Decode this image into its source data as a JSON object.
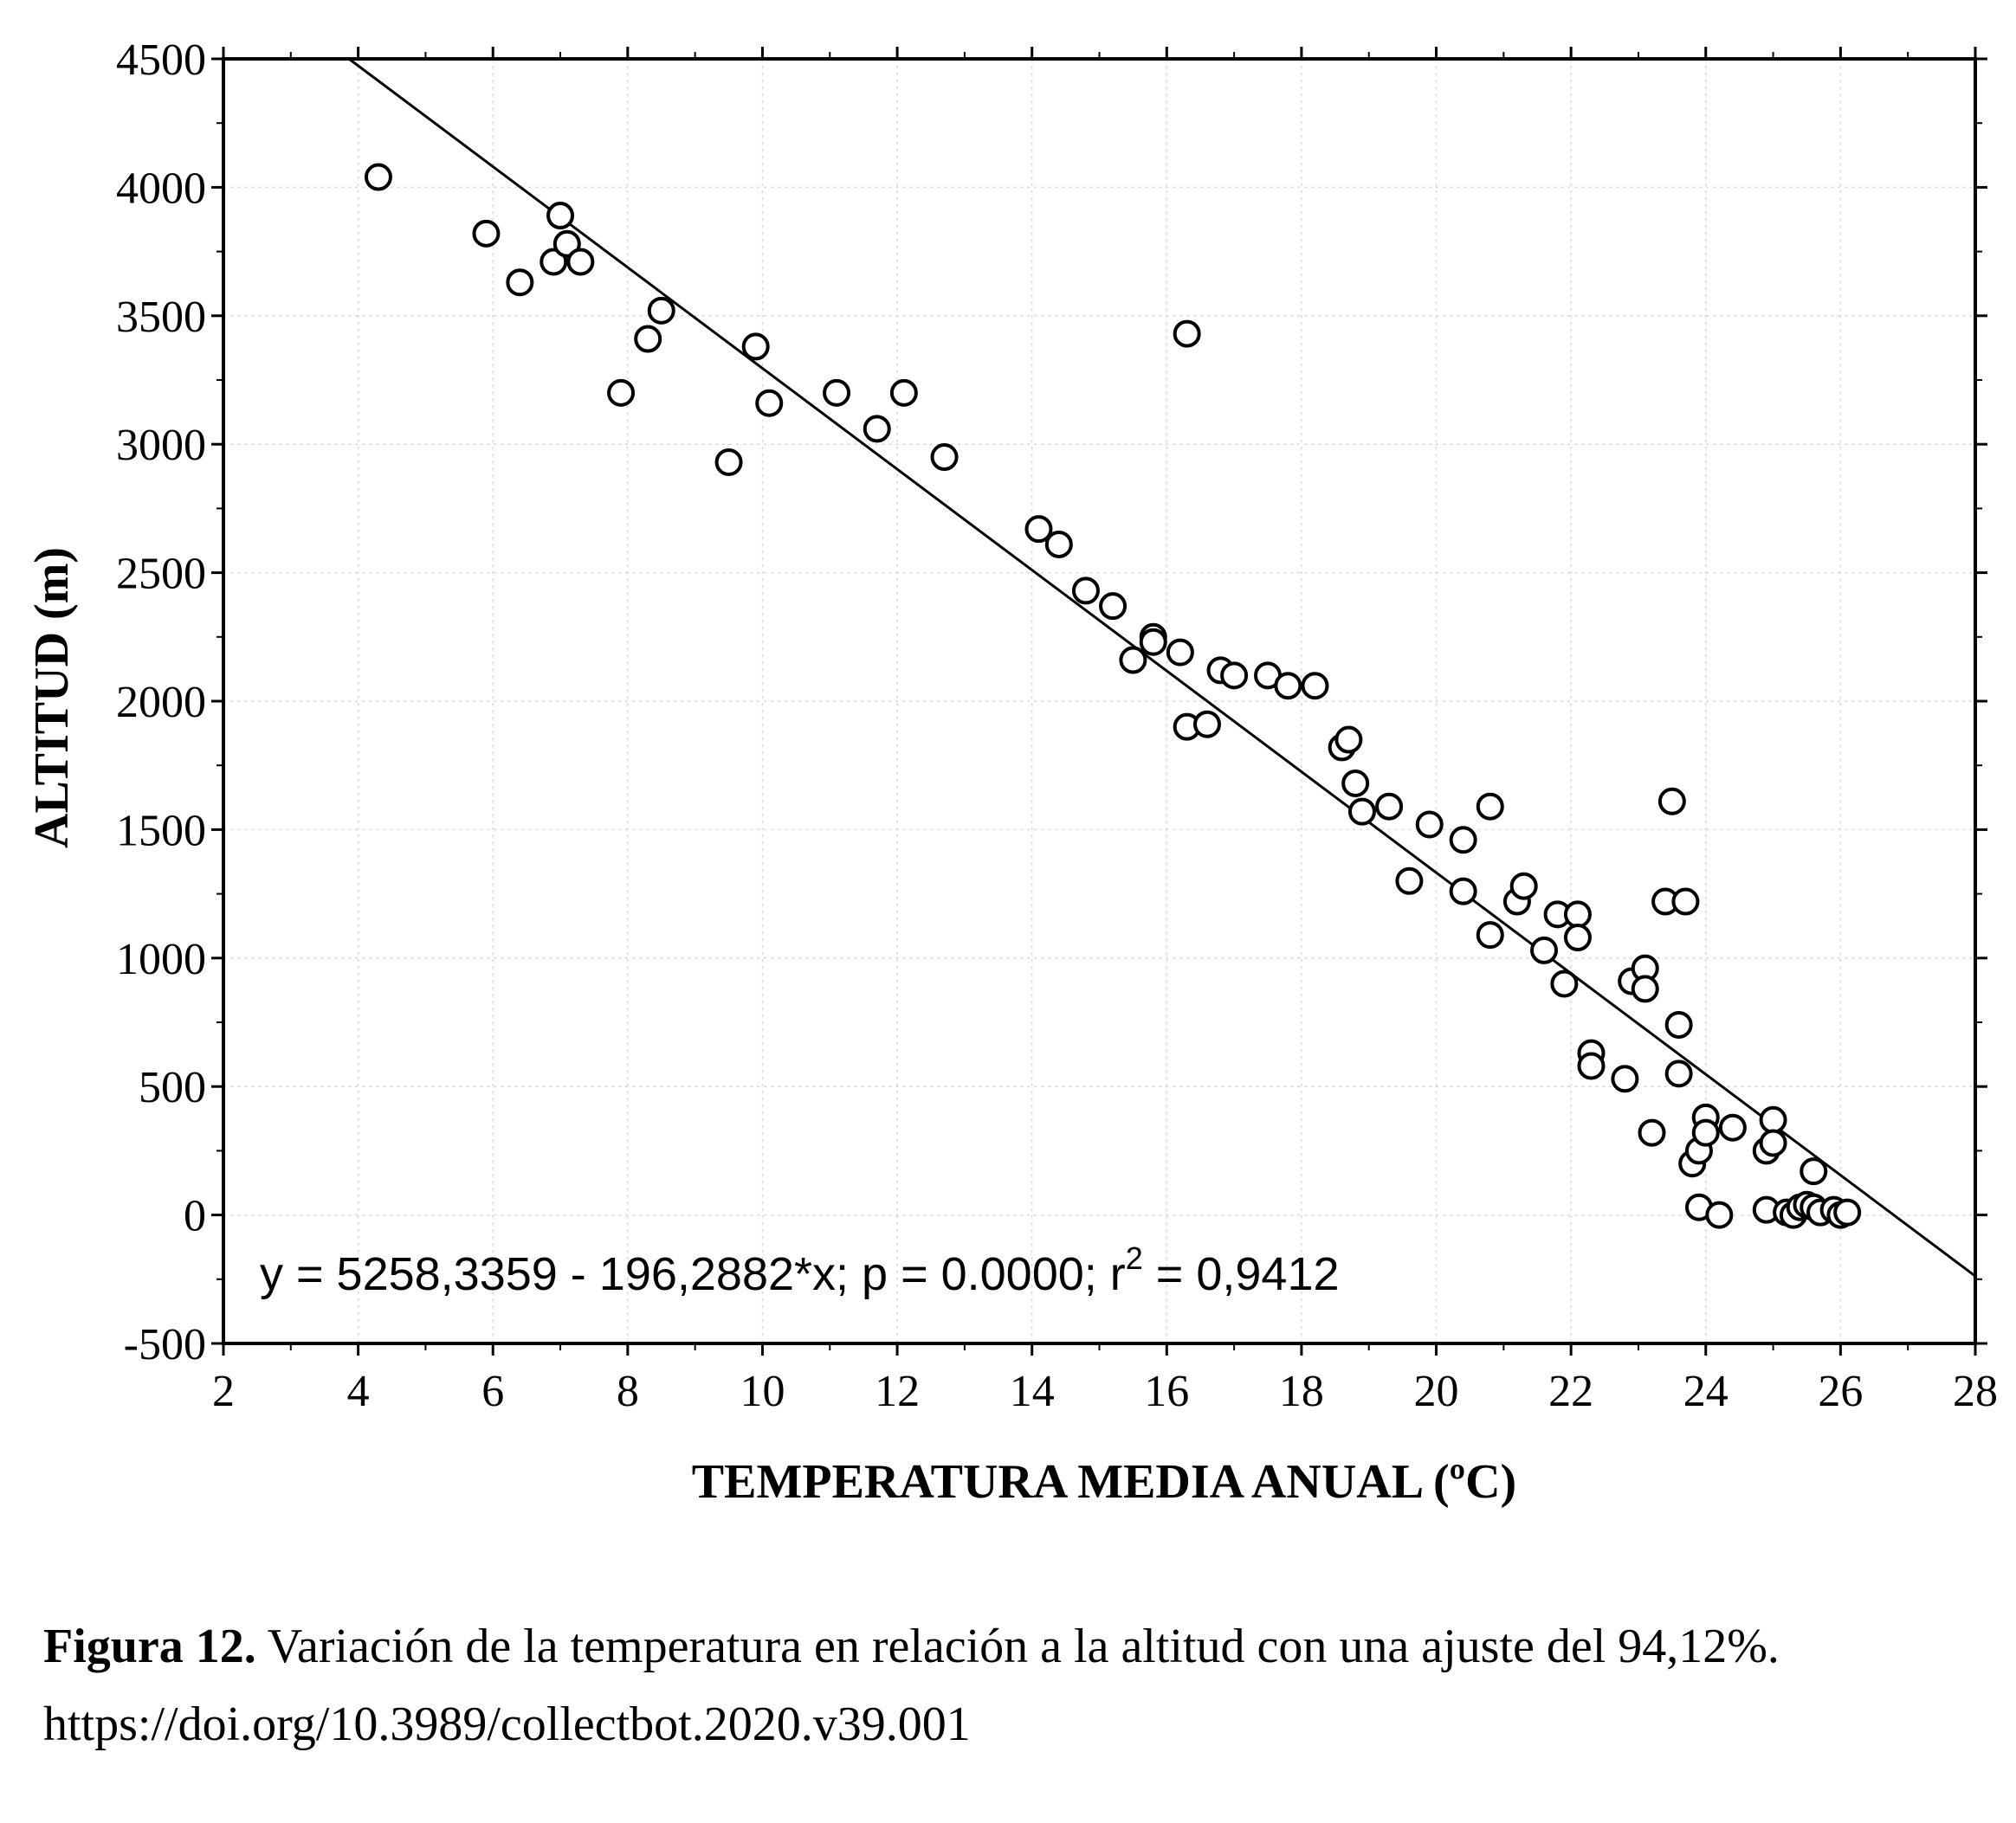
{
  "chart_data": {
    "type": "scatter",
    "title": "",
    "xlabel": "TEMPERATURA MEDIA ANUAL (ºC)",
    "ylabel": "ALTITUD (m)",
    "xlim": [
      2,
      28
    ],
    "ylim": [
      -500,
      4500
    ],
    "xticks": [
      "2",
      "4",
      "6",
      "8",
      "10",
      "12",
      "14",
      "16",
      "18",
      "20",
      "22",
      "24",
      "26",
      "28"
    ],
    "yticks": [
      "4500",
      "4000",
      "3500",
      "3000",
      "2500",
      "2000",
      "1500",
      "1000",
      "500",
      "0",
      "-500"
    ],
    "grid": true,
    "regression": {
      "intercept": 5258.3359,
      "slope": -196.2882
    },
    "equation": {
      "main": "y = 5258,3359 - 196,2882*x; p = 0.0000; r",
      "sup": "2",
      "tail": " = 0,9412"
    },
    "points": [
      [
        4.3,
        4040
      ],
      [
        5.9,
        3820
      ],
      [
        6.4,
        3630
      ],
      [
        6.9,
        3710
      ],
      [
        7.0,
        3890
      ],
      [
        7.1,
        3780
      ],
      [
        7.3,
        3710
      ],
      [
        7.9,
        3200
      ],
      [
        8.3,
        3410
      ],
      [
        8.5,
        3520
      ],
      [
        9.5,
        2930
      ],
      [
        9.9,
        3380
      ],
      [
        10.1,
        3160
      ],
      [
        11.1,
        3200
      ],
      [
        11.7,
        3060
      ],
      [
        12.1,
        3200
      ],
      [
        12.7,
        2950
      ],
      [
        14.1,
        2670
      ],
      [
        14.4,
        2610
      ],
      [
        14.8,
        2430
      ],
      [
        15.2,
        2370
      ],
      [
        15.5,
        2160
      ],
      [
        15.8,
        2250
      ],
      [
        15.8,
        2230
      ],
      [
        16.2,
        2190
      ],
      [
        16.3,
        3430
      ],
      [
        16.3,
        1900
      ],
      [
        16.6,
        1910
      ],
      [
        16.8,
        2120
      ],
      [
        17.0,
        2100
      ],
      [
        17.5,
        2100
      ],
      [
        17.8,
        2060
      ],
      [
        18.2,
        2060
      ],
      [
        18.6,
        1820
      ],
      [
        18.7,
        1850
      ],
      [
        18.8,
        1680
      ],
      [
        18.9,
        1570
      ],
      [
        19.3,
        1590
      ],
      [
        19.6,
        1300
      ],
      [
        19.9,
        1520
      ],
      [
        20.4,
        1460
      ],
      [
        20.4,
        1260
      ],
      [
        20.8,
        1590
      ],
      [
        20.8,
        1090
      ],
      [
        21.2,
        1220
      ],
      [
        21.3,
        1280
      ],
      [
        21.6,
        1030
      ],
      [
        21.8,
        1170
      ],
      [
        21.9,
        900
      ],
      [
        22.1,
        1170
      ],
      [
        22.1,
        1080
      ],
      [
        22.3,
        630
      ],
      [
        22.3,
        580
      ],
      [
        22.8,
        530
      ],
      [
        22.9,
        910
      ],
      [
        23.1,
        960
      ],
      [
        23.1,
        880
      ],
      [
        23.2,
        320
      ],
      [
        23.4,
        1220
      ],
      [
        23.5,
        1610
      ],
      [
        23.6,
        740
      ],
      [
        23.6,
        550
      ],
      [
        23.7,
        1220
      ],
      [
        23.8,
        200
      ],
      [
        23.9,
        250
      ],
      [
        23.9,
        30
      ],
      [
        24.0,
        380
      ],
      [
        24.0,
        320
      ],
      [
        24.2,
        0
      ],
      [
        24.4,
        340
      ],
      [
        24.9,
        250
      ],
      [
        24.9,
        20
      ],
      [
        25.0,
        370
      ],
      [
        25.0,
        280
      ],
      [
        25.2,
        10
      ],
      [
        25.3,
        0
      ],
      [
        25.4,
        30
      ],
      [
        25.5,
        40
      ],
      [
        25.6,
        170
      ],
      [
        25.6,
        30
      ],
      [
        25.7,
        10
      ],
      [
        25.9,
        20
      ],
      [
        26.0,
        0
      ],
      [
        26.1,
        10
      ]
    ]
  },
  "caption": {
    "label": "Figura 12.",
    "text": " Variación de la temperatura en relación a la altitud con una ajuste del 94,12%.",
    "doi": "https://doi.org/10.3989/collectbot.2020.v39.001"
  }
}
